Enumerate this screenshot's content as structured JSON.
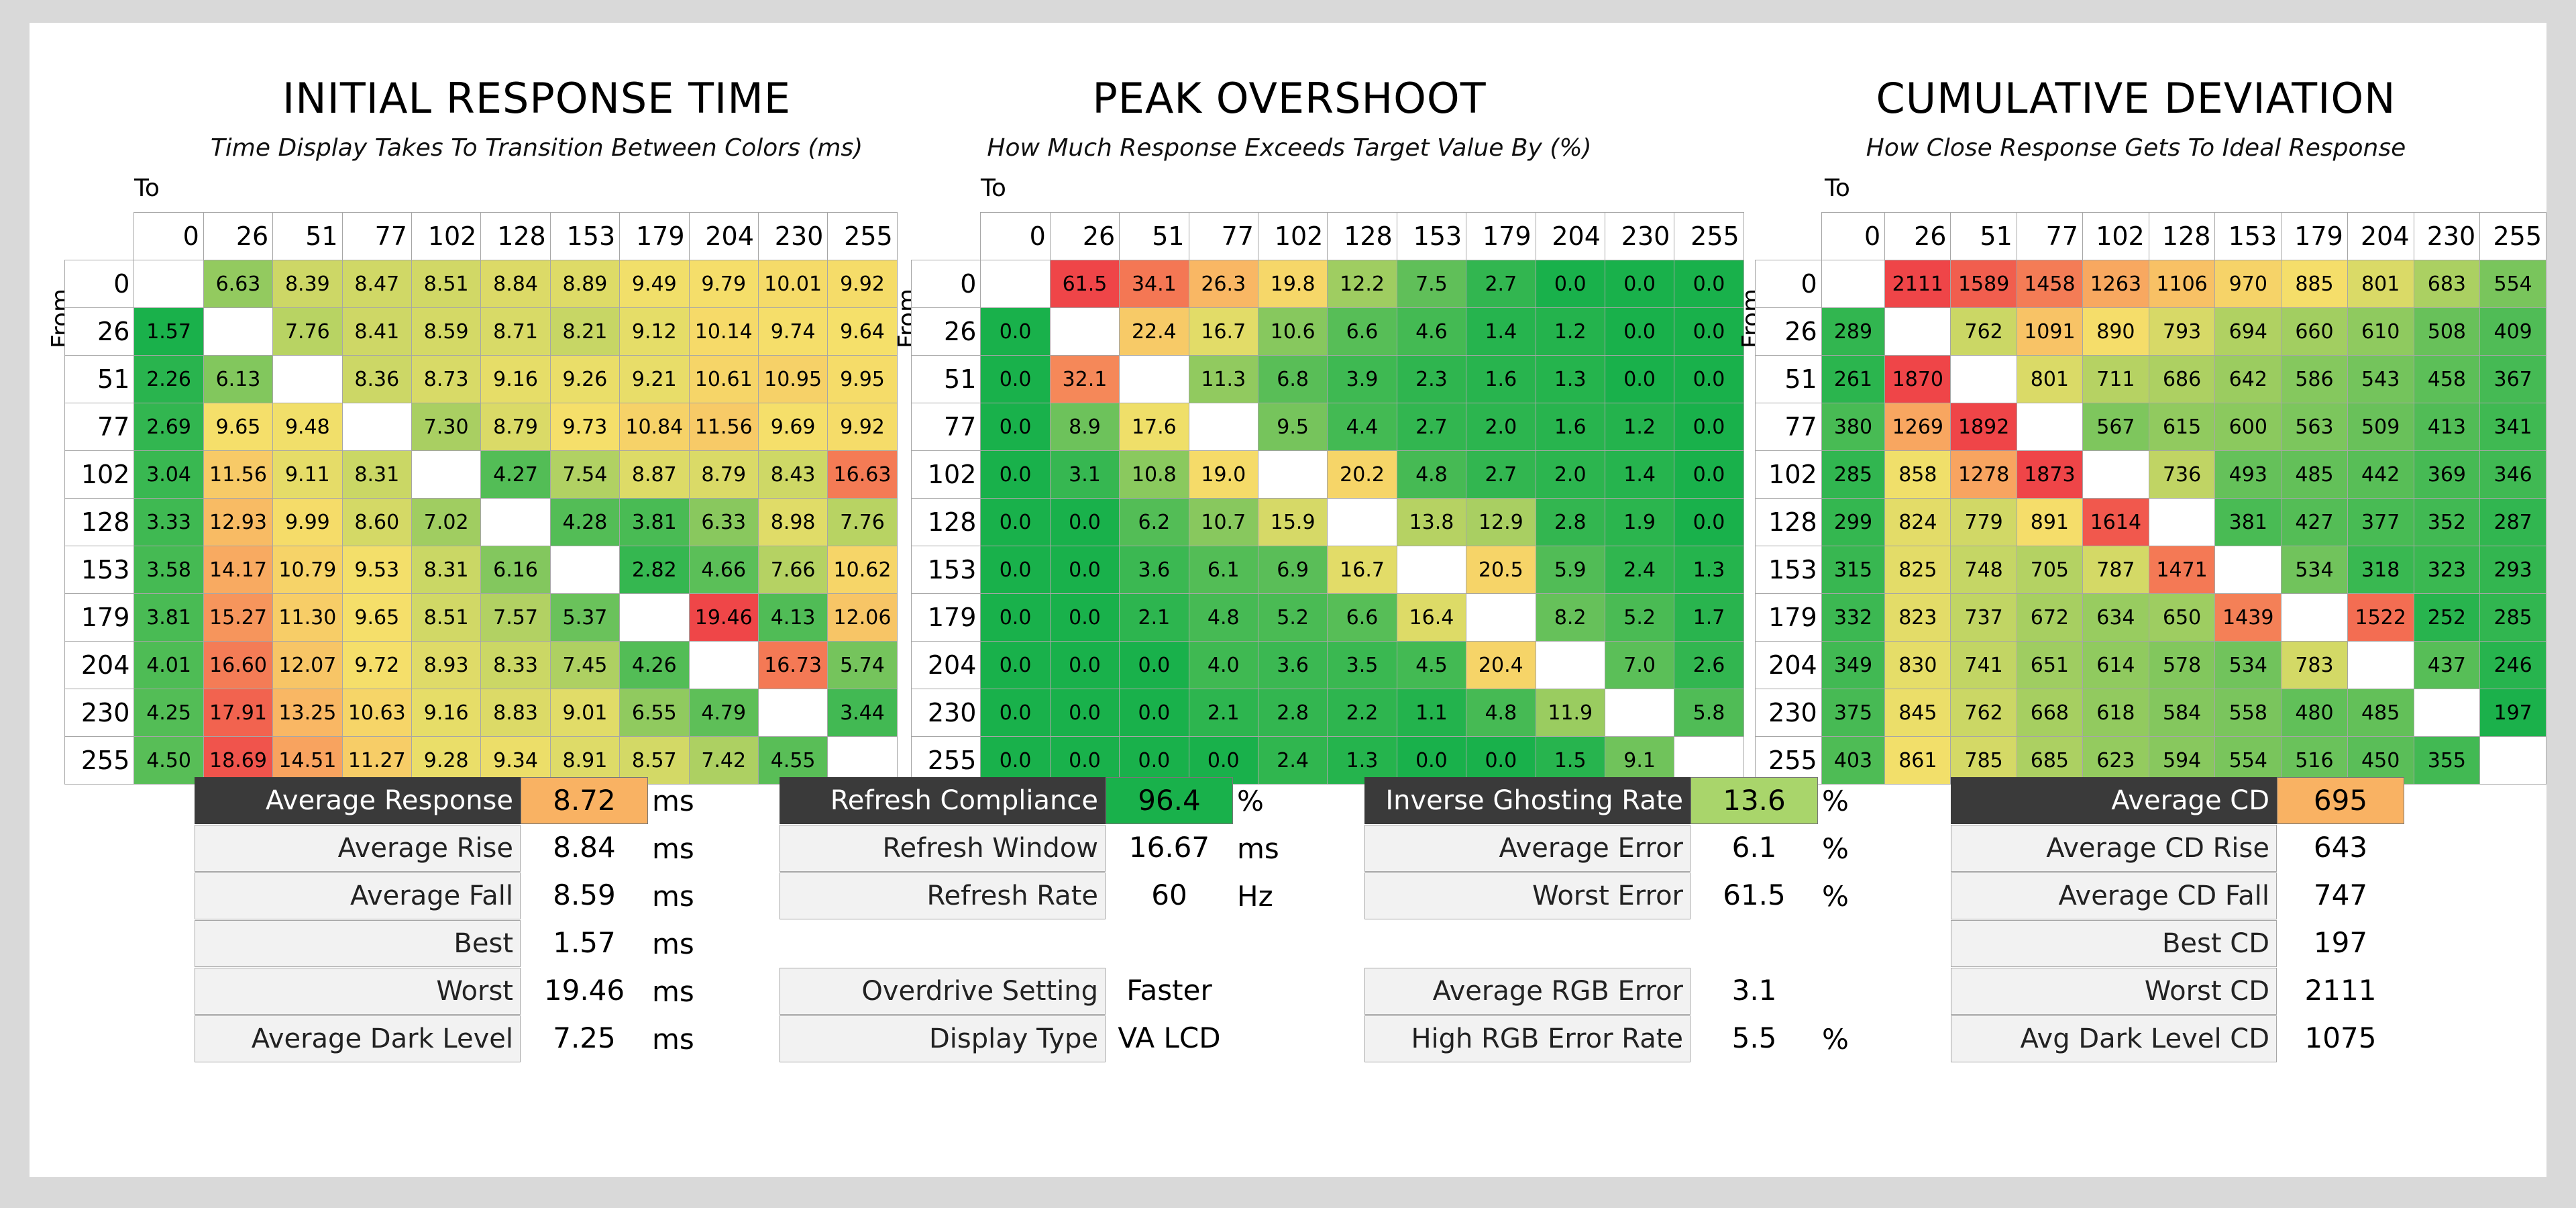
{
  "chart_data": [
    {
      "type": "heatmap",
      "title": "INITIAL RESPONSE TIME",
      "subtitle": "Time Display Takes To Transition Between Colors (ms)",
      "xlabel": "To",
      "ylabel": "From",
      "levels": [
        0,
        26,
        51,
        77,
        102,
        128,
        153,
        179,
        204,
        230,
        255
      ],
      "color_scale": {
        "good": "low",
        "min": 1.5,
        "max": 19.5
      },
      "matrix": [
        [
          null,
          "6.63",
          "8.39",
          "8.47",
          "8.51",
          "8.84",
          "8.89",
          "9.49",
          "9.79",
          "10.01",
          "9.92"
        ],
        [
          "1.57",
          null,
          "7.76",
          "8.41",
          "8.59",
          "8.71",
          "8.21",
          "9.12",
          "10.14",
          "9.74",
          "9.64"
        ],
        [
          "2.26",
          "6.13",
          null,
          "8.36",
          "8.73",
          "9.16",
          "9.26",
          "9.21",
          "10.61",
          "10.95",
          "9.95"
        ],
        [
          "2.69",
          "9.65",
          "9.48",
          null,
          "7.30",
          "8.79",
          "9.73",
          "10.84",
          "11.56",
          "9.69",
          "9.92"
        ],
        [
          "3.04",
          "11.56",
          "9.11",
          "8.31",
          null,
          "4.27",
          "7.54",
          "8.87",
          "8.79",
          "8.43",
          "16.63"
        ],
        [
          "3.33",
          "12.93",
          "9.99",
          "8.60",
          "7.02",
          null,
          "4.28",
          "3.81",
          "6.33",
          "8.98",
          "7.76"
        ],
        [
          "3.58",
          "14.17",
          "10.79",
          "9.53",
          "8.31",
          "6.16",
          null,
          "2.82",
          "4.66",
          "7.66",
          "10.62"
        ],
        [
          "3.81",
          "15.27",
          "11.30",
          "9.65",
          "8.51",
          "7.57",
          "5.37",
          null,
          "19.46",
          "4.13",
          "12.06"
        ],
        [
          "4.01",
          "16.60",
          "12.07",
          "9.72",
          "8.93",
          "8.33",
          "7.45",
          "4.26",
          null,
          "16.73",
          "5.74"
        ],
        [
          "4.25",
          "17.91",
          "13.25",
          "10.63",
          "9.16",
          "8.83",
          "9.01",
          "6.55",
          "4.79",
          null,
          "3.44"
        ],
        [
          "4.50",
          "18.69",
          "14.51",
          "11.27",
          "9.28",
          "9.34",
          "8.91",
          "8.57",
          "7.42",
          "4.55",
          null
        ]
      ]
    },
    {
      "type": "heatmap",
      "title": "PEAK OVERSHOOT",
      "subtitle": "How Much Response Exceeds Target Value By (%)",
      "xlabel": "To",
      "ylabel": "From",
      "levels": [
        0,
        26,
        51,
        77,
        102,
        128,
        153,
        179,
        204,
        230,
        255
      ],
      "color_scale": {
        "good": "low",
        "min": 0,
        "max": 40
      },
      "matrix": [
        [
          null,
          "61.5",
          "34.1",
          "26.3",
          "19.8",
          "12.2",
          "7.5",
          "2.7",
          "0.0",
          "0.0",
          "0.0"
        ],
        [
          "0.0",
          null,
          "22.4",
          "16.7",
          "10.6",
          "6.6",
          "4.6",
          "1.4",
          "1.2",
          "0.0",
          "0.0"
        ],
        [
          "0.0",
          "32.1",
          null,
          "11.3",
          "6.8",
          "3.9",
          "2.3",
          "1.6",
          "1.3",
          "0.0",
          "0.0"
        ],
        [
          "0.0",
          "8.9",
          "17.6",
          null,
          "9.5",
          "4.4",
          "2.7",
          "2.0",
          "1.6",
          "1.2",
          "0.0"
        ],
        [
          "0.0",
          "3.1",
          "10.8",
          "19.0",
          null,
          "20.2",
          "4.8",
          "2.7",
          "2.0",
          "1.4",
          "0.0"
        ],
        [
          "0.0",
          "0.0",
          "6.2",
          "10.7",
          "15.9",
          null,
          "13.8",
          "12.9",
          "2.8",
          "1.9",
          "0.0"
        ],
        [
          "0.0",
          "0.0",
          "3.6",
          "6.1",
          "6.9",
          "16.7",
          null,
          "20.5",
          "5.9",
          "2.4",
          "1.3"
        ],
        [
          "0.0",
          "0.0",
          "2.1",
          "4.8",
          "5.2",
          "6.6",
          "16.4",
          null,
          "8.2",
          "5.2",
          "1.7"
        ],
        [
          "0.0",
          "0.0",
          "0.0",
          "4.0",
          "3.6",
          "3.5",
          "4.5",
          "20.4",
          null,
          "7.0",
          "2.6"
        ],
        [
          "0.0",
          "0.0",
          "0.0",
          "2.1",
          "2.8",
          "2.2",
          "1.1",
          "4.8",
          "11.9",
          null,
          "5.8"
        ],
        [
          "0.0",
          "0.0",
          "0.0",
          "0.0",
          "2.4",
          "1.3",
          "0.0",
          "0.0",
          "1.5",
          "9.1",
          null
        ]
      ]
    },
    {
      "type": "heatmap",
      "title": "CUMULATIVE DEVIATION",
      "subtitle": "How Close Response Gets To Ideal Response",
      "xlabel": "To",
      "ylabel": "From",
      "levels": [
        0,
        26,
        51,
        77,
        102,
        128,
        153,
        179,
        204,
        230,
        255
      ],
      "color_scale": {
        "good": "low",
        "min": 190,
        "max": 1700
      },
      "matrix": [
        [
          null,
          "2111",
          "1589",
          "1458",
          "1263",
          "1106",
          "970",
          "885",
          "801",
          "683",
          "554"
        ],
        [
          "289",
          null,
          "762",
          "1091",
          "890",
          "793",
          "694",
          "660",
          "610",
          "508",
          "409"
        ],
        [
          "261",
          "1870",
          null,
          "801",
          "711",
          "686",
          "642",
          "586",
          "543",
          "458",
          "367"
        ],
        [
          "380",
          "1269",
          "1892",
          null,
          "567",
          "615",
          "600",
          "563",
          "509",
          "413",
          "341"
        ],
        [
          "285",
          "858",
          "1278",
          "1873",
          null,
          "736",
          "493",
          "485",
          "442",
          "369",
          "346"
        ],
        [
          "299",
          "824",
          "779",
          "891",
          "1614",
          null,
          "381",
          "427",
          "377",
          "352",
          "287"
        ],
        [
          "315",
          "825",
          "748",
          "705",
          "787",
          "1471",
          null,
          "534",
          "318",
          "323",
          "293"
        ],
        [
          "332",
          "823",
          "737",
          "672",
          "634",
          "650",
          "1439",
          null,
          "1522",
          "252",
          "285"
        ],
        [
          "349",
          "830",
          "741",
          "651",
          "614",
          "578",
          "534",
          "783",
          null,
          "437",
          "246"
        ],
        [
          "375",
          "845",
          "762",
          "668",
          "618",
          "584",
          "558",
          "480",
          "485",
          null,
          "197"
        ],
        [
          "403",
          "861",
          "785",
          "685",
          "623",
          "594",
          "554",
          "516",
          "450",
          "355",
          null
        ]
      ]
    }
  ],
  "stats": {
    "response": [
      {
        "label": "Average Response",
        "value": "8.72",
        "unit": "ms",
        "highlight": "#f9b263"
      },
      {
        "label": "Average Rise",
        "value": "8.84",
        "unit": "ms"
      },
      {
        "label": "Average Fall",
        "value": "8.59",
        "unit": "ms"
      },
      {
        "label": "Best",
        "value": "1.57",
        "unit": "ms"
      },
      {
        "label": "Worst",
        "value": "19.46",
        "unit": "ms"
      },
      {
        "label": "Average Dark Level",
        "value": "7.25",
        "unit": "ms"
      }
    ],
    "refresh": [
      {
        "label": "Refresh Compliance",
        "value": "96.4",
        "unit": "%",
        "highlight": "#19b14b"
      },
      {
        "label": "Refresh Window",
        "value": "16.67",
        "unit": "ms"
      },
      {
        "label": "Refresh Rate",
        "value": "60",
        "unit": "Hz"
      },
      {
        "label": "Overdrive Setting",
        "value": "Faster",
        "unit": ""
      },
      {
        "label": "Display Type",
        "value": "VA LCD",
        "unit": ""
      }
    ],
    "error": [
      {
        "label": "Inverse Ghosting Rate",
        "value": "13.6",
        "unit": "%",
        "highlight": "#a9d56b"
      },
      {
        "label": "Average Error",
        "value": "6.1",
        "unit": "%"
      },
      {
        "label": "Worst Error",
        "value": "61.5",
        "unit": "%"
      },
      {
        "label": "Average RGB Error",
        "value": "3.1",
        "unit": ""
      },
      {
        "label": "High RGB Error Rate",
        "value": "5.5",
        "unit": "%"
      }
    ],
    "cd": [
      {
        "label": "Average CD",
        "value": "695",
        "unit": "",
        "highlight": "#f9b263"
      },
      {
        "label": "Average CD Rise",
        "value": "643",
        "unit": ""
      },
      {
        "label": "Average CD Fall",
        "value": "747",
        "unit": ""
      },
      {
        "label": "Best CD",
        "value": "197",
        "unit": ""
      },
      {
        "label": "Worst CD",
        "value": "2111",
        "unit": ""
      },
      {
        "label": "Avg Dark Level CD",
        "value": "1075",
        "unit": ""
      }
    ]
  }
}
